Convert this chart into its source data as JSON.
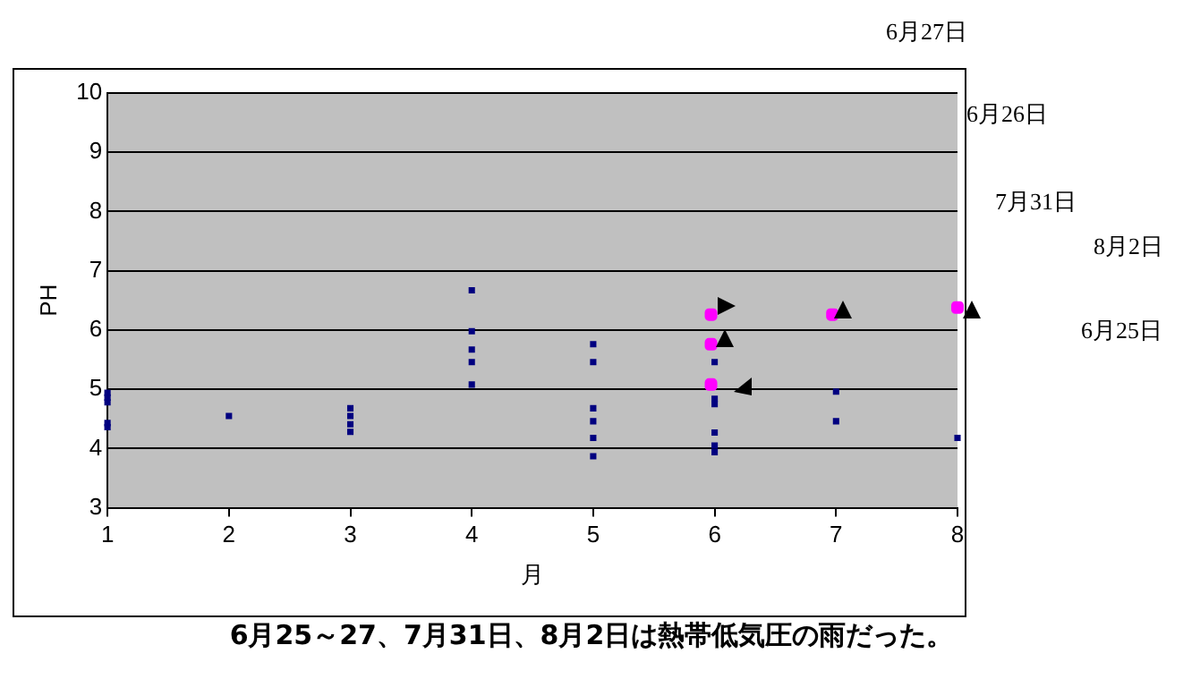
{
  "chart_data": {
    "type": "scatter",
    "xlabel": "月",
    "ylabel": "PH",
    "xlim": [
      1,
      8
    ],
    "xticks": [
      1,
      2,
      3,
      4,
      5,
      6,
      7,
      8
    ],
    "ylim": [
      3,
      10
    ],
    "yticks": [
      3,
      4,
      5,
      6,
      7,
      8,
      9,
      10
    ],
    "grid": "y",
    "legend": false,
    "series": [
      {
        "color": "#000080",
        "marker": "square",
        "x": [
          1,
          1,
          1,
          1,
          1,
          2,
          3,
          3,
          3,
          3,
          4,
          4,
          4,
          4,
          4,
          5,
          5,
          5,
          5,
          5,
          5,
          6,
          6,
          6,
          6,
          6,
          6,
          7,
          7,
          8
        ],
        "values": [
          4.94,
          4.86,
          4.78,
          4.43,
          4.36,
          4.55,
          4.68,
          4.55,
          4.41,
          4.28,
          6.67,
          5.98,
          5.67,
          5.46,
          5.08,
          5.76,
          5.46,
          4.68,
          4.46,
          4.18,
          3.87,
          5.46,
          4.84,
          4.75,
          4.27,
          4.05,
          3.94,
          4.96,
          4.46,
          4.18
        ]
      },
      {
        "color": "#ff00ff",
        "marker": "circle",
        "x": [
          5.97,
          5.97,
          5.97,
          6.97,
          8
        ],
        "values": [
          6.26,
          5.76,
          5.08,
          6.26,
          6.38
        ]
      }
    ],
    "annotations": [
      "6月27日",
      "6月26日",
      "7月31日",
      "8月2日",
      "6月25日",
      "6月25～27、7月31日、8月2日は熱帯低気圧の雨だった。"
    ]
  }
}
